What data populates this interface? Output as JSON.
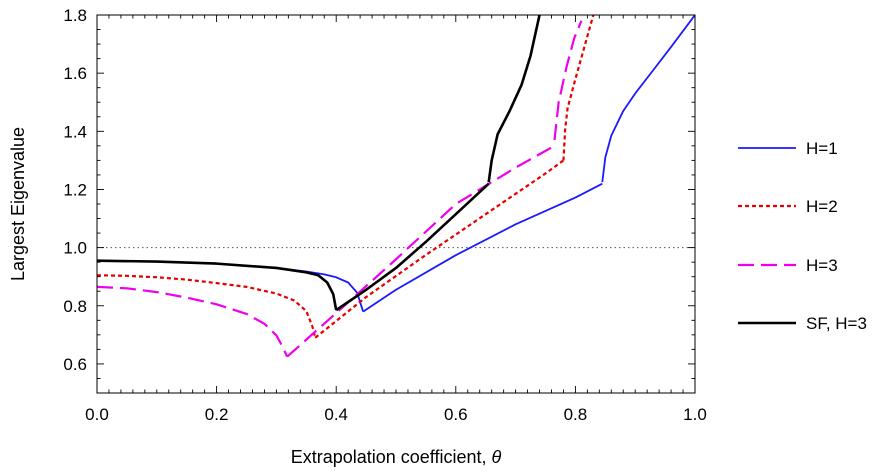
{
  "chart_data": {
    "type": "line",
    "xlabel": "Extrapolation coefficient, ",
    "xlabel_symbol": "θ",
    "ylabel": "Largest Eigenvalue",
    "xlim": [
      0.0,
      1.0
    ],
    "ylim": [
      0.5,
      1.8
    ],
    "x_ticks": [
      "0.0",
      "0.2",
      "0.4",
      "0.6",
      "0.8",
      "1.0"
    ],
    "y_ticks": [
      "0.6",
      "0.8",
      "1.0",
      "1.2",
      "1.4",
      "1.6",
      "1.8"
    ],
    "x_tick_values": [
      0.0,
      0.2,
      0.4,
      0.6,
      0.8,
      1.0
    ],
    "y_tick_values": [
      0.6,
      0.8,
      1.0,
      1.2,
      1.4,
      1.6,
      1.8
    ],
    "reference_line": {
      "y": 1.0,
      "style": "dotted",
      "color": "#555555"
    },
    "legend_position": "right",
    "series": [
      {
        "name": "H=1",
        "color": "#1a1aff",
        "dash": "solid",
        "width": 1.8,
        "segments": [
          [
            [
              0.0,
              0.955
            ],
            [
              0.1,
              0.952
            ],
            [
              0.2,
              0.945
            ],
            [
              0.3,
              0.93
            ],
            [
              0.35,
              0.918
            ],
            [
              0.38,
              0.908
            ],
            [
              0.4,
              0.898
            ],
            [
              0.42,
              0.88
            ],
            [
              0.435,
              0.845
            ],
            [
              0.445,
              0.78
            ]
          ],
          [
            [
              0.445,
              0.78
            ],
            [
              0.5,
              0.855
            ],
            [
              0.6,
              0.974
            ],
            [
              0.7,
              1.08
            ],
            [
              0.8,
              1.172
            ],
            [
              0.845,
              1.22
            ]
          ],
          [
            [
              0.845,
              1.225
            ],
            [
              0.85,
              1.31
            ],
            [
              0.86,
              1.385
            ],
            [
              0.88,
              1.47
            ],
            [
              0.9,
              1.53
            ],
            [
              0.93,
              1.61
            ],
            [
              0.96,
              1.69
            ],
            [
              1.0,
              1.8
            ]
          ]
        ]
      },
      {
        "name": "H=2",
        "color": "#e60000",
        "dash": "4,3",
        "width": 2.2,
        "segments": [
          [
            [
              0.0,
              0.905
            ],
            [
              0.05,
              0.903
            ],
            [
              0.1,
              0.898
            ],
            [
              0.15,
              0.89
            ],
            [
              0.2,
              0.878
            ],
            [
              0.25,
              0.865
            ],
            [
              0.3,
              0.842
            ],
            [
              0.33,
              0.818
            ],
            [
              0.35,
              0.782
            ],
            [
              0.36,
              0.73
            ],
            [
              0.365,
              0.69
            ]
          ],
          [
            [
              0.365,
              0.69
            ],
            [
              0.45,
              0.83
            ],
            [
              0.55,
              0.975
            ],
            [
              0.65,
              1.115
            ],
            [
              0.75,
              1.255
            ],
            [
              0.78,
              1.3
            ]
          ],
          [
            [
              0.78,
              1.3
            ],
            [
              0.783,
              1.41
            ],
            [
              0.787,
              1.48
            ],
            [
              0.8,
              1.58
            ],
            [
              0.815,
              1.69
            ],
            [
              0.83,
              1.8
            ]
          ]
        ]
      },
      {
        "name": "H=3",
        "color": "#ee00ee",
        "dash": "16,7",
        "width": 2.2,
        "segments": [
          [
            [
              0.0,
              0.865
            ],
            [
              0.05,
              0.86
            ],
            [
              0.1,
              0.847
            ],
            [
              0.15,
              0.828
            ],
            [
              0.2,
              0.805
            ],
            [
              0.25,
              0.772
            ],
            [
              0.28,
              0.738
            ],
            [
              0.3,
              0.698
            ],
            [
              0.31,
              0.66
            ],
            [
              0.318,
              0.625
            ]
          ],
          [
            [
              0.318,
              0.625
            ],
            [
              0.4,
              0.775
            ],
            [
              0.5,
              0.96
            ],
            [
              0.6,
              1.15
            ],
            [
              0.7,
              1.275
            ],
            [
              0.765,
              1.35
            ]
          ],
          [
            [
              0.765,
              1.37
            ],
            [
              0.772,
              1.5
            ],
            [
              0.785,
              1.62
            ],
            [
              0.798,
              1.72
            ],
            [
              0.81,
              1.78
            ]
          ]
        ]
      },
      {
        "name": "SF, H=3",
        "color": "#000000",
        "dash": "solid",
        "width": 2.6,
        "segments": [
          [
            [
              0.0,
              0.955
            ],
            [
              0.1,
              0.952
            ],
            [
              0.2,
              0.945
            ],
            [
              0.3,
              0.93
            ],
            [
              0.35,
              0.915
            ],
            [
              0.37,
              0.905
            ],
            [
              0.385,
              0.88
            ],
            [
              0.395,
              0.84
            ],
            [
              0.4,
              0.785
            ]
          ],
          [
            [
              0.4,
              0.785
            ],
            [
              0.45,
              0.855
            ],
            [
              0.5,
              0.93
            ],
            [
              0.55,
              1.02
            ],
            [
              0.6,
              1.115
            ],
            [
              0.655,
              1.22
            ]
          ],
          [
            [
              0.655,
              1.225
            ],
            [
              0.66,
              1.3
            ],
            [
              0.67,
              1.39
            ],
            [
              0.69,
              1.47
            ],
            [
              0.71,
              1.56
            ],
            [
              0.725,
              1.66
            ],
            [
              0.74,
              1.8
            ]
          ]
        ]
      }
    ]
  }
}
